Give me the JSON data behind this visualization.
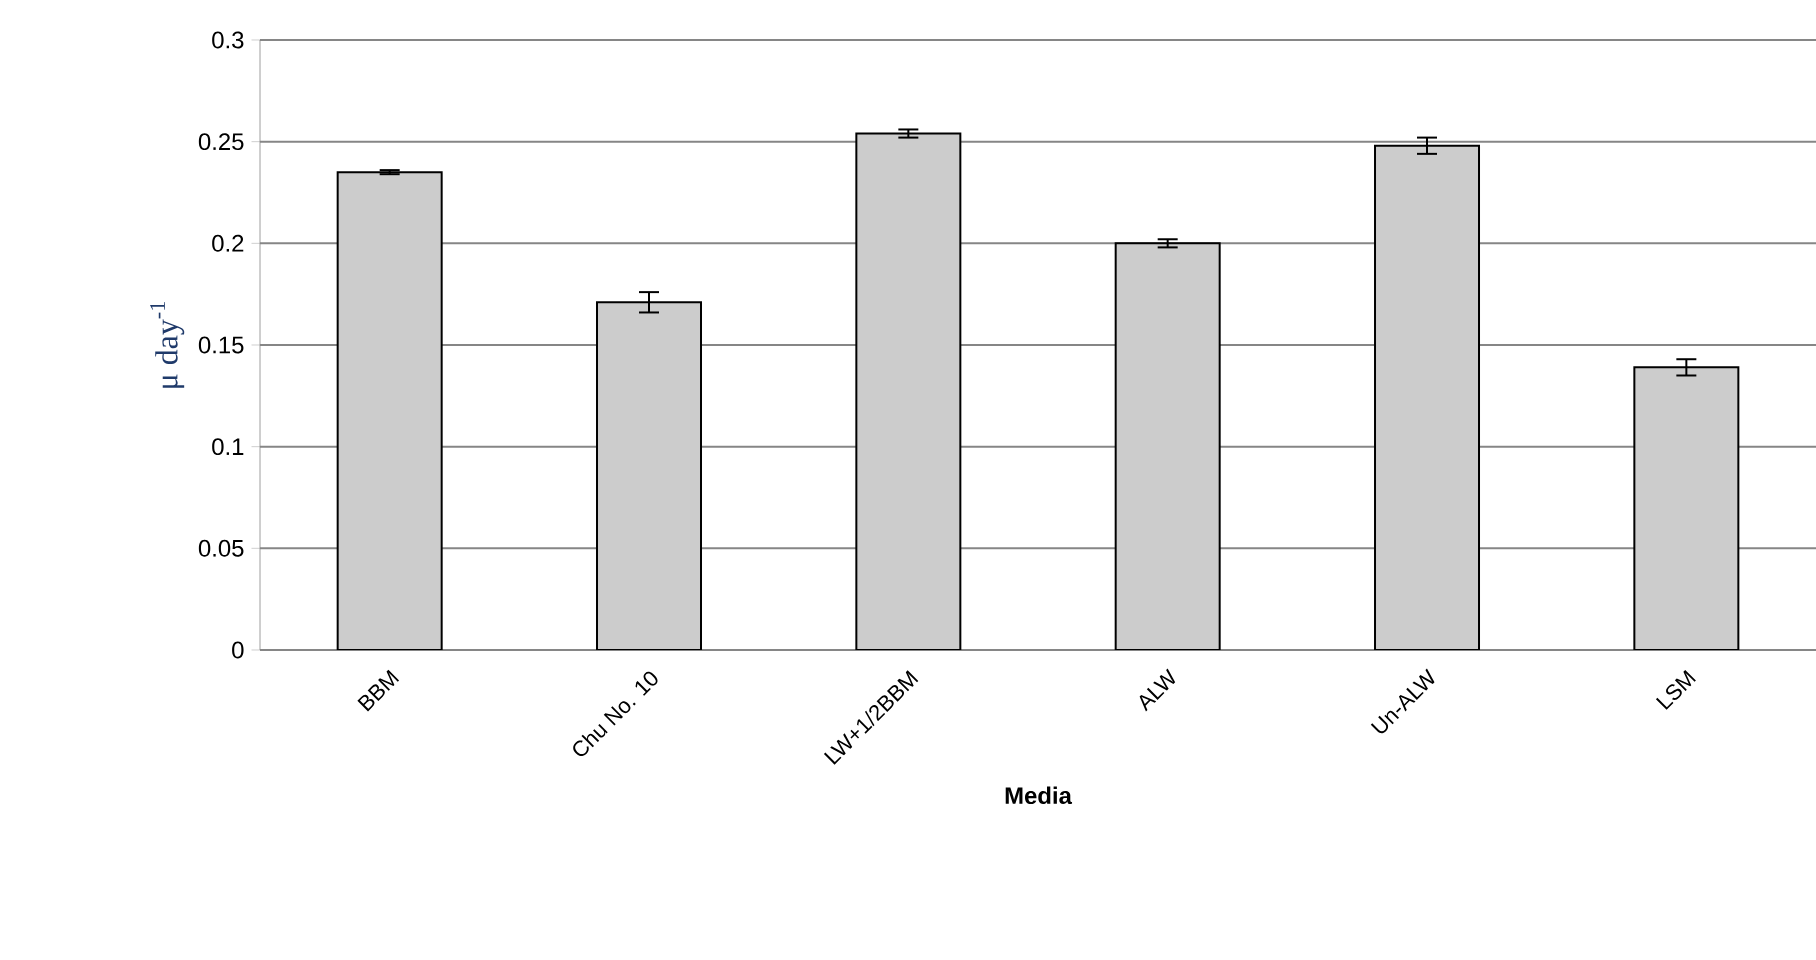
{
  "chart_data": {
    "type": "bar",
    "xlabel": "Media",
    "ylabel": "μ day$^{-1}$",
    "categories": [
      "BBM",
      "Chu No. 10",
      "LW+1/2BBM",
      "ALW",
      "Un-ALW",
      "LSM"
    ],
    "values": [
      0.235,
      0.171,
      0.254,
      0.2,
      0.248,
      0.139
    ],
    "errors": [
      0.001,
      0.005,
      0.002,
      0.002,
      0.004,
      0.004
    ],
    "color": "#cccccc",
    "ylim": [
      0,
      0.3
    ],
    "yticks": [
      0,
      0.05,
      0.1,
      0.15,
      0.2,
      0.25,
      0.3
    ],
    "grid": "y"
  }
}
